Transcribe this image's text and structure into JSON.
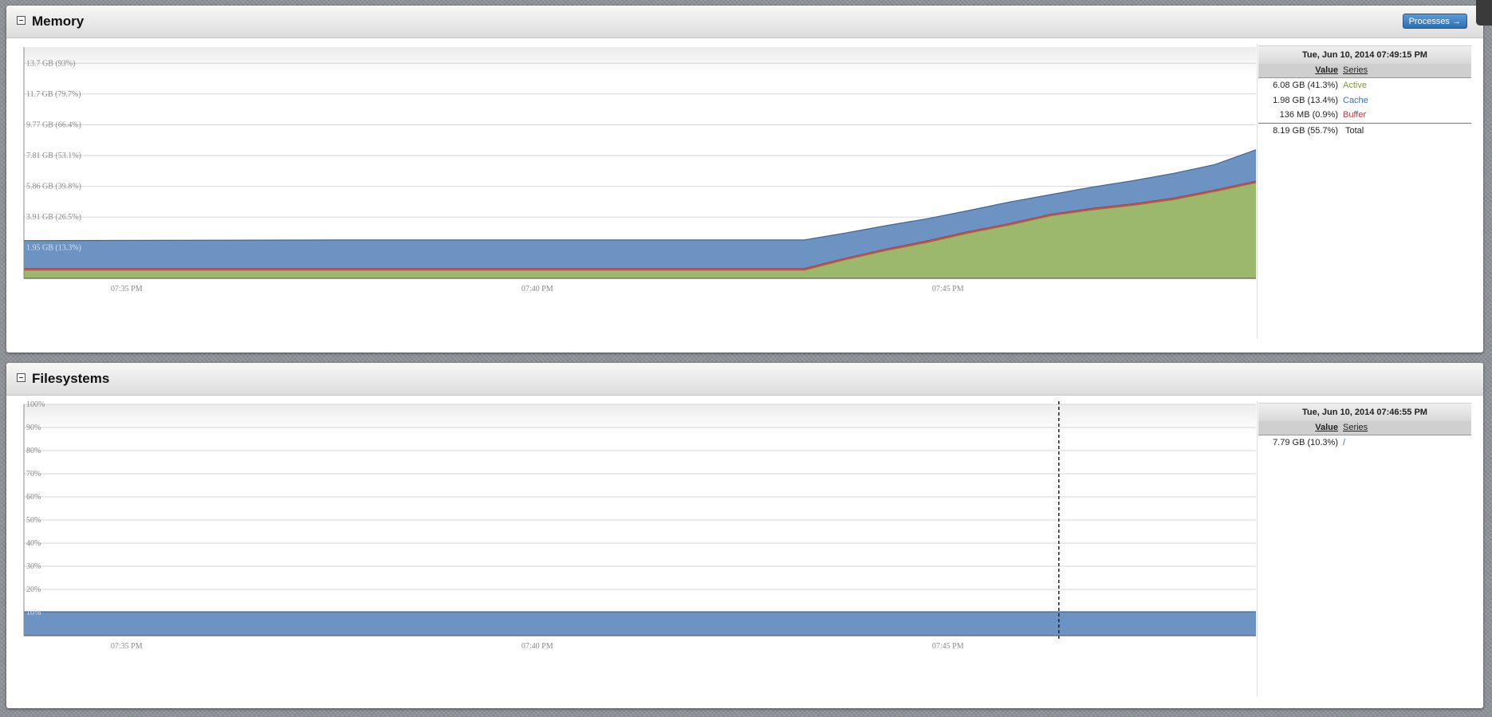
{
  "memory": {
    "title": "Memory",
    "processes_button": "Processes →",
    "legend": {
      "time": "Tue, Jun 10, 2014 07:49:15 PM",
      "value_header": "Value",
      "series_header": "Series",
      "rows": [
        {
          "value": "6.08 GB (41.3%)",
          "series": "Active",
          "color": "#7f9b3c"
        },
        {
          "value": "1.98 GB (13.4%)",
          "series": "Cache",
          "color": "#3e6fb0"
        },
        {
          "value": "136 MB (0.9%)",
          "series": "Buffer",
          "color": "#b33a3a"
        }
      ],
      "total_value": "8.19 GB (55.7%)",
      "total_label": "Total"
    }
  },
  "filesystems": {
    "title": "Filesystems",
    "legend": {
      "time": "Tue, Jun 10, 2014 07:46:55 PM",
      "value_header": "Value",
      "series_header": "Series",
      "rows": [
        {
          "value": "7.79 GB (10.3%)",
          "series": "/",
          "color": "#3e6fb0"
        }
      ]
    }
  },
  "chart_data": [
    {
      "type": "area",
      "stacked": true,
      "ylim_percent": [
        0,
        100
      ],
      "x_range_min": [
        0,
        30
      ],
      "x_ticks": [
        {
          "min": 2.5,
          "label": "07:35 PM"
        },
        {
          "min": 12.5,
          "label": "07:40 PM"
        },
        {
          "min": 22.5,
          "label": "07:45 PM"
        }
      ],
      "y_ticks": [
        {
          "pct": 13.3,
          "label": "1.95 GB (13.3%)"
        },
        {
          "pct": 26.5,
          "label": "3.91 GB (26.5%)"
        },
        {
          "pct": 39.8,
          "label": "5.86 GB (39.8%)"
        },
        {
          "pct": 53.1,
          "label": "7.81 GB (53.1%)"
        },
        {
          "pct": 66.4,
          "label": "9.77 GB (66.4%)"
        },
        {
          "pct": 79.7,
          "label": "11.7 GB (79.7%)"
        },
        {
          "pct": 93,
          "label": "13.7 GB (93%)"
        }
      ],
      "grid": true,
      "x": [
        0,
        7.5,
        19,
        20,
        21,
        22,
        23,
        24,
        25,
        26,
        27,
        28,
        29,
        30
      ],
      "series": [
        {
          "name": "Active",
          "color": "#9cb86c",
          "values": [
            3.5,
            3.5,
            3.5,
            8,
            12,
            15.5,
            19.5,
            23,
            27,
            29.5,
            31.5,
            34,
            37.5,
            41.3
          ]
        },
        {
          "name": "Buffer",
          "color": "#c0504d",
          "values": [
            0.9,
            0.9,
            0.9,
            0.9,
            0.9,
            0.9,
            0.9,
            0.9,
            0.9,
            0.9,
            0.9,
            0.9,
            0.9,
            0.9
          ]
        },
        {
          "name": "Cache",
          "color": "#6d93c3",
          "values": [
            11.9,
            12.2,
            12.2,
            10.7,
            9.9,
            9.4,
            8.9,
            9.1,
            8.3,
            9,
            9.8,
            10.5,
            10.8,
            13.4
          ]
        }
      ]
    },
    {
      "type": "area",
      "ylim_percent": [
        0,
        100
      ],
      "x_range_min": [
        0,
        30
      ],
      "x_ticks": [
        {
          "min": 2.5,
          "label": "07:35 PM"
        },
        {
          "min": 12.5,
          "label": "07:40 PM"
        },
        {
          "min": 22.5,
          "label": "07:45 PM"
        }
      ],
      "y_ticks": [
        {
          "pct": 10,
          "label": "10%"
        },
        {
          "pct": 20,
          "label": "20%"
        },
        {
          "pct": 30,
          "label": "30%"
        },
        {
          "pct": 40,
          "label": "40%"
        },
        {
          "pct": 50,
          "label": "50%"
        },
        {
          "pct": 60,
          "label": "60%"
        },
        {
          "pct": 70,
          "label": "70%"
        },
        {
          "pct": 80,
          "label": "80%"
        },
        {
          "pct": 90,
          "label": "90%"
        },
        {
          "pct": 100,
          "label": "100%"
        }
      ],
      "grid": true,
      "hover_min": 25.2,
      "x": [
        0,
        30
      ],
      "series": [
        {
          "name": "/",
          "color": "#6d93c3",
          "values": [
            10.3,
            10.3
          ]
        }
      ]
    }
  ]
}
